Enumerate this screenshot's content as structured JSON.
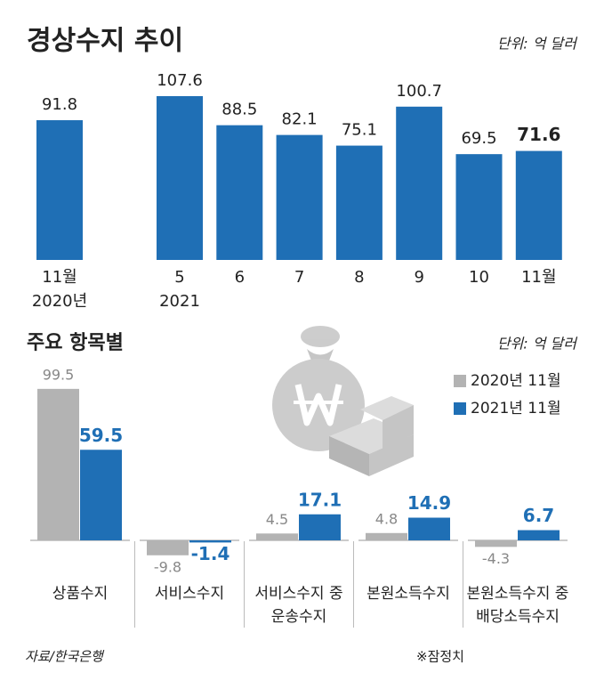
{
  "chart_data": [
    {
      "type": "bar",
      "title": "경상수지 추이",
      "unit": "단위: 억 달러",
      "color": "#1f6fb5",
      "categories": [
        [
          "11월",
          "2020년"
        ],
        [
          "5",
          "2021"
        ],
        [
          "6"
        ],
        [
          "7"
        ],
        [
          "8"
        ],
        [
          "9"
        ],
        [
          "10"
        ],
        [
          "11월"
        ]
      ],
      "values": [
        91.8,
        107.6,
        88.5,
        82.1,
        75.1,
        100.7,
        69.5,
        71.6
      ]
    },
    {
      "type": "grouped-bar",
      "title": "주요 항목별",
      "unit": "단위: 억 달러",
      "categories": [
        [
          "상품수지"
        ],
        [
          "서비스수지"
        ],
        [
          "서비스수지 중",
          "운송수지"
        ],
        [
          "본원소득수지"
        ],
        [
          "본원소득수지 중",
          "배당소득수지"
        ]
      ],
      "series": [
        {
          "name": "2020년 11월",
          "color": "#b3b3b3",
          "values": [
            99.5,
            -9.8,
            4.5,
            4.8,
            -4.3
          ]
        },
        {
          "name": "2021년 11월",
          "color": "#1f6fb5",
          "values": [
            59.5,
            -1.4,
            17.1,
            14.9,
            6.7
          ]
        }
      ]
    }
  ],
  "source": "자료/한국은행",
  "note": "※잠정치"
}
